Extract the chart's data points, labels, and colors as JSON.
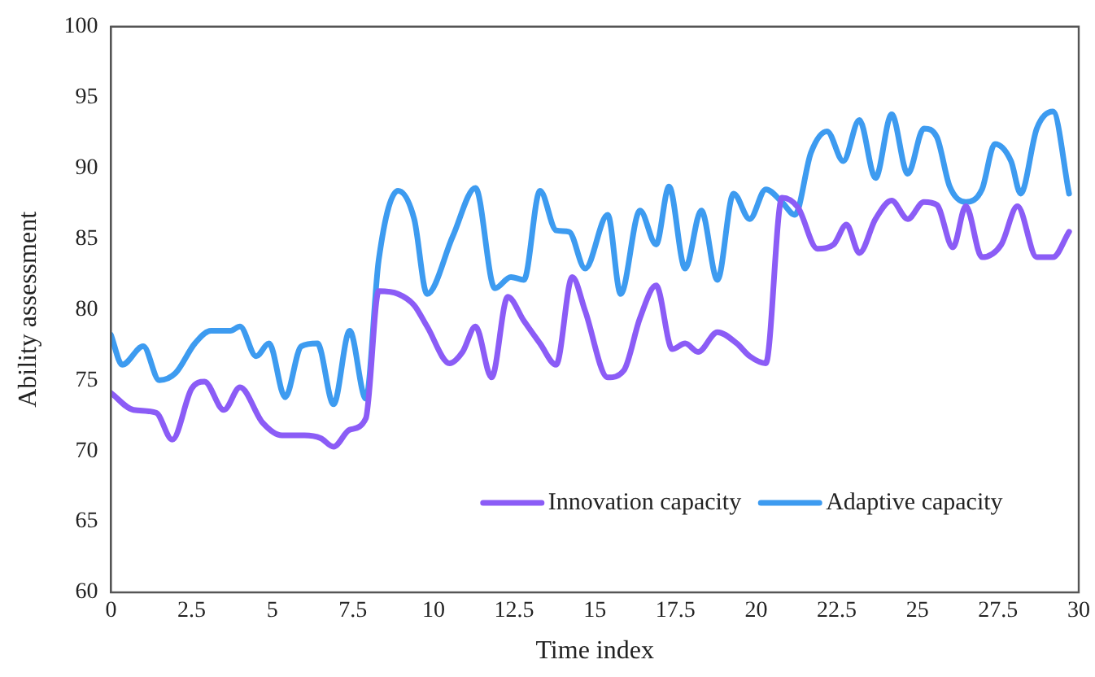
{
  "chart_data": {
    "type": "line",
    "xlabel": "Time index",
    "ylabel": "Ability assessment",
    "xlim": [
      0,
      30
    ],
    "xticks": [
      0,
      2.5,
      5,
      7.5,
      10,
      12.5,
      15,
      17.5,
      20,
      22.5,
      25,
      27.5,
      30
    ],
    "ylim": [
      60,
      100
    ],
    "yticks": [
      60,
      65,
      70,
      75,
      80,
      85,
      90,
      95,
      100
    ],
    "grid": false,
    "legend": "bottom",
    "marker": "none",
    "line_style": "solid",
    "series": [
      {
        "name": "Innovation capacity",
        "color": "#8b5cf6",
        "x": [
          0,
          0.7,
          1.4,
          1.9,
          2.5,
          2.9,
          3.5,
          4,
          4.7,
          5.3,
          6,
          6.5,
          6.9,
          7.4,
          7.9,
          8.3,
          8.9,
          9.4,
          9.8,
          10.5,
          10.9,
          11.3,
          11.8,
          12.3,
          12.8,
          13.3,
          13.8,
          14.3,
          14.7,
          15.4,
          15.9,
          16.4,
          16.9,
          17.4,
          17.8,
          18.2,
          18.8,
          19.4,
          19.8,
          20.3,
          20.8,
          21.3,
          21.9,
          22.4,
          22.8,
          23.2,
          23.7,
          24.2,
          24.7,
          25.2,
          25.6,
          26.1,
          26.5,
          27,
          27.6,
          28.1,
          28.7,
          29.2,
          29.7
        ],
        "values": [
          74.1,
          72.9,
          72.7,
          70.8,
          74.4,
          74.9,
          72.9,
          74.5,
          72,
          71.1,
          71.1,
          70.9,
          70.3,
          71.5,
          72.3,
          81.3,
          81.1,
          80.3,
          78.8,
          76.2,
          77,
          78.8,
          75.2,
          80.9,
          79.2,
          77.6,
          76.1,
          82.3,
          79.9,
          75.2,
          75.7,
          79.4,
          81.7,
          77.2,
          77.6,
          77,
          78.4,
          77.6,
          76.7,
          76.2,
          87.9,
          87.2,
          84.3,
          84.6,
          86,
          84,
          86.4,
          87.7,
          86.4,
          87.6,
          87.4,
          84.4,
          87.3,
          83.7,
          84.6,
          87.3,
          83.7,
          83.7,
          85.5
        ]
      },
      {
        "name": "Adaptive capacity",
        "color": "#3d9bf0",
        "x": [
          0,
          0.35,
          1,
          1.5,
          2,
          2.6,
          3.1,
          3.7,
          4,
          4.5,
          4.9,
          5.4,
          5.9,
          6.4,
          6.9,
          7.4,
          7.9,
          8.3,
          8.9,
          9.4,
          9.8,
          10.6,
          11.3,
          11.9,
          12.4,
          12.8,
          13.3,
          13.8,
          14.2,
          14.7,
          15.4,
          15.8,
          16.4,
          16.9,
          17.3,
          17.8,
          18.3,
          18.8,
          19.3,
          19.8,
          20.3,
          20.8,
          21.2,
          21.7,
          22.2,
          22.7,
          23.2,
          23.7,
          24.2,
          24.7,
          25.2,
          25.6,
          26,
          26.5,
          27,
          27.4,
          27.9,
          28.2,
          28.7,
          29.2,
          29.7
        ],
        "values": [
          78.2,
          76.1,
          77.4,
          75,
          75.5,
          77.6,
          78.5,
          78.5,
          78.8,
          76.7,
          77.6,
          73.8,
          77.4,
          77.6,
          73.3,
          78.5,
          73.7,
          83.5,
          88.4,
          86.4,
          81.1,
          85.2,
          88.6,
          81.5,
          82.3,
          82.1,
          88.4,
          85.6,
          85.5,
          82.9,
          86.7,
          81.1,
          87,
          84.6,
          88.7,
          82.9,
          87,
          82.1,
          88.2,
          86.4,
          88.5,
          87.6,
          86.7,
          91.1,
          92.6,
          90.5,
          93.4,
          89.3,
          93.8,
          89.6,
          92.8,
          92.2,
          88.7,
          87.6,
          88.5,
          91.7,
          90.5,
          88.2,
          92.8,
          94,
          88.2
        ]
      }
    ]
  }
}
